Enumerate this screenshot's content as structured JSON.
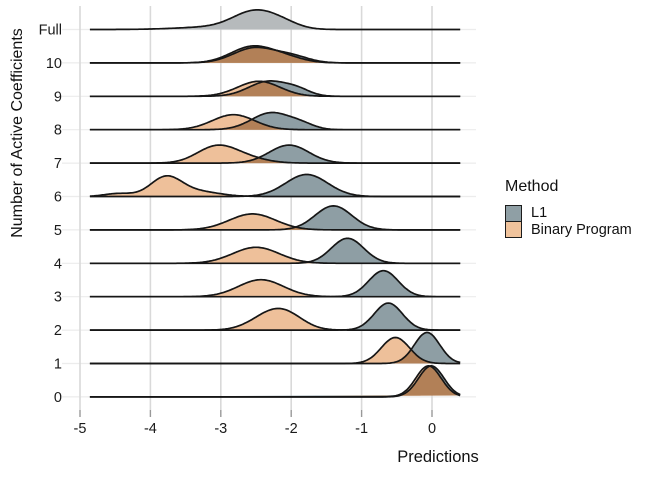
{
  "legend": {
    "title": "Method",
    "items": [
      {
        "label": "L1",
        "color": "#8f9fa5"
      },
      {
        "label": "Binary Program",
        "color": "#f0c39c"
      }
    ]
  },
  "colors": {
    "l1_fill": "#8e9ea4",
    "bp_fill": "#eec09a",
    "overlap_fill": "#b28057",
    "full_fill": "#b6babc",
    "stroke": "#161616",
    "grid_vertical": "#d9d9d9",
    "grid_horizontal": "#ececec",
    "tick_mark": "#999999",
    "text": "#1a1a1a"
  },
  "chart_data": {
    "type": "area",
    "subtype": "ridgeline-density",
    "title": "",
    "x_label": "Predictions",
    "y_label": "Number of Active Coefficients",
    "x_ticks": [
      -5,
      -4,
      -3,
      -2,
      -1,
      0
    ],
    "x_curve_range": [
      -4.86,
      0.4
    ],
    "legend_position": "right",
    "grid": true,
    "note": "components are gaussian bumps [mean, sd, peak_height_px] per method per row",
    "rows": [
      {
        "label": "Full",
        "full": [
          [
            -2.52,
            0.3,
            17
          ],
          [
            -2.12,
            0.24,
            5
          ],
          [
            -3.1,
            0.5,
            2.5
          ]
        ]
      },
      {
        "label": "10",
        "l1": [
          [
            -2.52,
            0.3,
            15
          ],
          [
            -1.98,
            0.24,
            6
          ]
        ],
        "bp": [
          [
            -2.56,
            0.3,
            16
          ],
          [
            -2.08,
            0.26,
            5
          ]
        ]
      },
      {
        "label": "9",
        "l1": [
          [
            -2.32,
            0.28,
            15
          ],
          [
            -1.9,
            0.18,
            5
          ]
        ],
        "bp": [
          [
            -2.46,
            0.3,
            15
          ]
        ]
      },
      {
        "label": "8",
        "l1": [
          [
            -2.28,
            0.28,
            17
          ],
          [
            -1.84,
            0.18,
            4
          ]
        ],
        "bp": [
          [
            -2.82,
            0.3,
            15
          ]
        ]
      },
      {
        "label": "7",
        "l1": [
          [
            -2.03,
            0.28,
            18
          ]
        ],
        "bp": [
          [
            -3.08,
            0.27,
            15
          ],
          [
            -2.7,
            0.3,
            6
          ]
        ]
      },
      {
        "label": "6",
        "l1": [
          [
            -1.78,
            0.3,
            22
          ]
        ],
        "bp": [
          [
            -3.78,
            0.22,
            19
          ],
          [
            -4.45,
            0.2,
            3
          ],
          [
            -3.33,
            0.3,
            5
          ]
        ]
      },
      {
        "label": "5",
        "l1": [
          [
            -1.4,
            0.26,
            24
          ]
        ],
        "bp": [
          [
            -2.55,
            0.33,
            16
          ]
        ]
      },
      {
        "label": "4",
        "l1": [
          [
            -1.2,
            0.23,
            25
          ]
        ],
        "bp": [
          [
            -2.5,
            0.33,
            16
          ]
        ]
      },
      {
        "label": "3",
        "l1": [
          [
            -0.69,
            0.21,
            26
          ]
        ],
        "bp": [
          [
            -2.43,
            0.32,
            17
          ]
        ]
      },
      {
        "label": "2",
        "l1": [
          [
            -0.62,
            0.2,
            27
          ]
        ],
        "bp": [
          [
            -2.33,
            0.27,
            13
          ],
          [
            -2.05,
            0.25,
            12
          ]
        ]
      },
      {
        "label": "1",
        "l1": [
          [
            -0.07,
            0.18,
            31
          ]
        ],
        "bp": [
          [
            -0.52,
            0.2,
            26
          ]
        ]
      },
      {
        "label": "0",
        "l1": [
          [
            -0.01,
            0.18,
            31
          ]
        ],
        "bp": [
          [
            -0.05,
            0.18,
            31
          ]
        ]
      }
    ]
  }
}
